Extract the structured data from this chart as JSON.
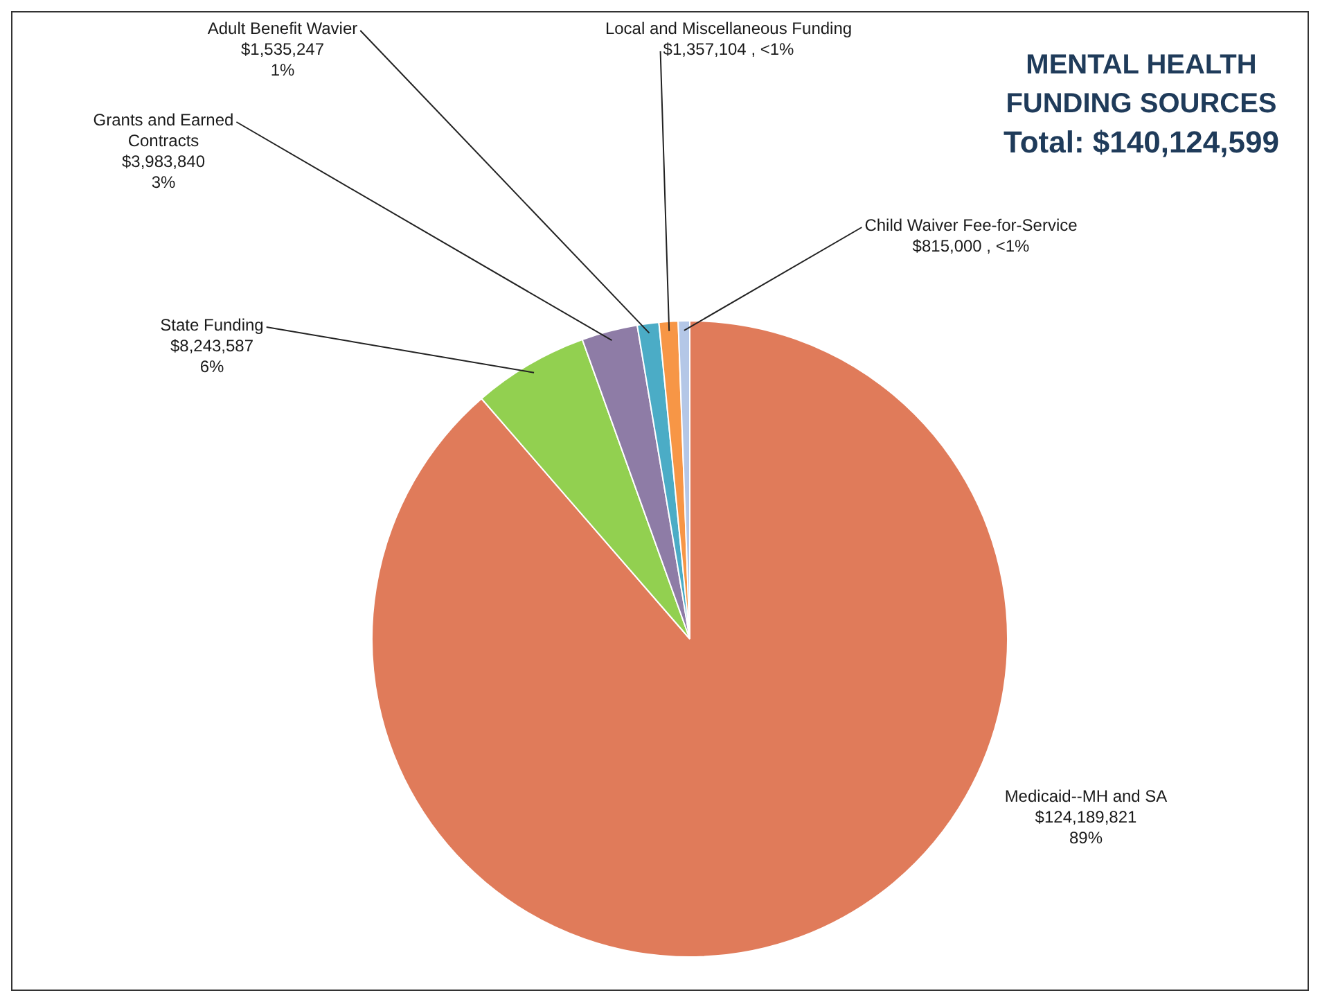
{
  "chart_data": {
    "type": "pie",
    "title": "MENTAL HEALTH FUNDING SOURCES",
    "subtitle": "Total: $140,124,599",
    "categories": [
      "Medicaid--MH and SA",
      "State Funding",
      "Grants and Earned Contracts",
      "Adult Benefit Wavier",
      "Local and Miscellaneous Funding",
      "Child Waiver Fee-for-Service"
    ],
    "values": [
      124189821,
      8243587,
      3983840,
      1535247,
      1357104,
      815000
    ],
    "value_labels": [
      "$124,189,821\n89%",
      "$8,243,587\n6%",
      "$3,983,840\n3%",
      "$1,535,247\n1%",
      "$1,357,104 , <1%",
      "$815,000 , <1%"
    ],
    "colors": [
      "#e07b5a",
      "#92d050",
      "#8e7ca6",
      "#4bacc6",
      "#f79646",
      "#b4c7e7"
    ],
    "legend": false
  }
}
